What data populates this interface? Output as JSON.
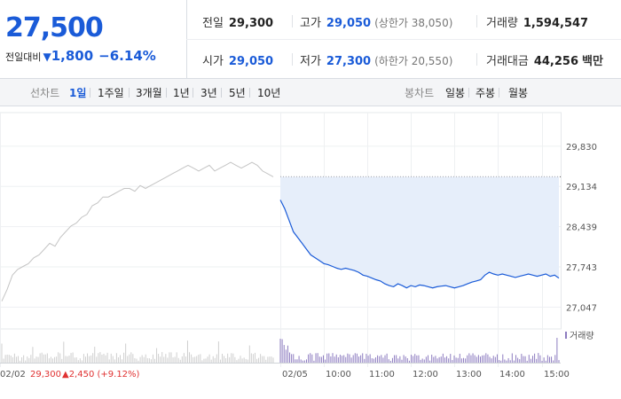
{
  "header": {
    "current_price": "27,500",
    "change_label": "전일대비",
    "change_arrow": "▼",
    "change_value": "1,800",
    "change_pct": "−6.14%",
    "quotes": [
      {
        "label": "전일",
        "value": "29,300",
        "extra": ""
      },
      {
        "label": "고가",
        "value": "29,050",
        "extra": "(상한가 38,050)"
      },
      {
        "label": "거래량",
        "value": "1,594,547",
        "extra": ""
      },
      {
        "label": "시가",
        "value": "29,050",
        "extra": ""
      },
      {
        "label": "저가",
        "value": "27,300",
        "extra": "(하한가 20,550)"
      },
      {
        "label": "거래대금",
        "value": "44,256",
        "extra": "백만"
      }
    ]
  },
  "tabs": {
    "line_label": "선차트",
    "periods": [
      "1일",
      "1주일",
      "3개월",
      "1년",
      "3년",
      "5년",
      "10년"
    ],
    "active_period": "1일",
    "candle_label": "봉차트",
    "candles": [
      "일봉",
      "주봉",
      "월봉"
    ]
  },
  "colors": {
    "accent": "#1a5bd8",
    "prev_line": "#c4c4c4",
    "area": "#e6eefa",
    "up": "#e03131"
  },
  "chart_data": {
    "type": "line",
    "y_ticks": [
      29830,
      29134,
      28439,
      27743,
      27047
    ],
    "y_tick_labels": [
      "29,830",
      "29,134",
      "28,439",
      "27,743",
      "27,047"
    ],
    "ylim": [
      26900,
      29950
    ],
    "prev_close": 29300,
    "x_tick_labels": [
      "02/02",
      "02/05",
      "10:00",
      "11:00",
      "12:00",
      "13:00",
      "14:00",
      "15:00"
    ],
    "prev_day": {
      "date": "02/02",
      "close": "29,300",
      "change": "2,450",
      "change_pct": "(+9.12%)",
      "values": [
        27150,
        27350,
        27600,
        27700,
        27750,
        27800,
        27900,
        27950,
        28050,
        28150,
        28100,
        28250,
        28350,
        28450,
        28500,
        28600,
        28650,
        28800,
        28850,
        28950,
        28950,
        29000,
        29050,
        29100,
        29100,
        29050,
        29150,
        29100,
        29150,
        29200,
        29250,
        29300,
        29350,
        29400,
        29450,
        29500,
        29450,
        29400,
        29450,
        29500,
        29400,
        29450,
        29500,
        29550,
        29500,
        29450,
        29500,
        29550,
        29500,
        29400,
        29350,
        29300
      ]
    },
    "today": {
      "date": "02/05",
      "values": [
        28900,
        28750,
        28550,
        28350,
        28250,
        28150,
        28050,
        27950,
        27900,
        27850,
        27800,
        27780,
        27750,
        27720,
        27700,
        27720,
        27700,
        27680,
        27650,
        27600,
        27580,
        27550,
        27520,
        27500,
        27450,
        27420,
        27400,
        27450,
        27420,
        27380,
        27420,
        27400,
        27430,
        27420,
        27400,
        27380,
        27400,
        27410,
        27420,
        27400,
        27380,
        27400,
        27420,
        27450,
        27480,
        27500,
        27520,
        27600,
        27650,
        27620,
        27600,
        27620,
        27600,
        27580,
        27560,
        27580,
        27600,
        27620,
        27600,
        27580,
        27600,
        27620,
        27580,
        27600,
        27550
      ]
    },
    "volume_label": "거래량"
  }
}
